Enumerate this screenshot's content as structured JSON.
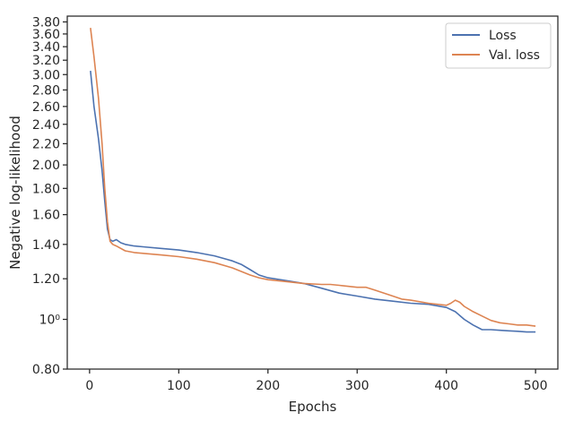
{
  "chart_data": {
    "type": "line",
    "title": "",
    "xlabel": "Epochs",
    "ylabel": "Negative log-likelihood",
    "xlim": [
      -25,
      525
    ],
    "ylim": [
      0.8,
      3.9
    ],
    "y_scale": "log",
    "grid": false,
    "legend_position": "top-right",
    "x_ticks": [
      0,
      100,
      200,
      300,
      400,
      500
    ],
    "x_tick_labels": [
      "0",
      "100",
      "200",
      "300",
      "400",
      "500"
    ],
    "y_ticks": [
      0.8,
      1.0,
      1.2,
      1.4,
      1.6,
      1.8,
      2.0,
      2.2,
      2.4,
      2.6,
      2.8,
      3.0,
      3.2,
      3.4,
      3.6,
      3.8
    ],
    "y_tick_labels": [
      "0.80",
      "10⁰",
      "1.20",
      "1.40",
      "1.60",
      "1.80",
      "2.00",
      "2.20",
      "2.40",
      "2.60",
      "2.80",
      "3.00",
      "3.20",
      "3.40",
      "3.60",
      "3.80"
    ],
    "series": [
      {
        "name": "Loss",
        "color": "#4c72b0",
        "x": [
          1,
          5,
          10,
          14,
          17,
          20,
          23,
          26,
          30,
          35,
          40,
          50,
          60,
          80,
          100,
          120,
          140,
          160,
          170,
          180,
          190,
          200,
          220,
          240,
          260,
          280,
          300,
          320,
          340,
          360,
          380,
          400,
          410,
          420,
          430,
          440,
          450,
          460,
          470,
          480,
          490,
          500
        ],
        "y": [
          3.05,
          2.6,
          2.25,
          1.95,
          1.7,
          1.5,
          1.43,
          1.42,
          1.43,
          1.41,
          1.4,
          1.39,
          1.385,
          1.375,
          1.365,
          1.35,
          1.33,
          1.3,
          1.28,
          1.25,
          1.22,
          1.205,
          1.19,
          1.175,
          1.15,
          1.125,
          1.11,
          1.095,
          1.085,
          1.075,
          1.07,
          1.055,
          1.035,
          1.0,
          0.975,
          0.955,
          0.955,
          0.952,
          0.95,
          0.948,
          0.945,
          0.945
        ]
      },
      {
        "name": "Val. loss",
        "color": "#dd8452",
        "x": [
          1,
          5,
          10,
          14,
          17,
          20,
          23,
          26,
          30,
          40,
          50,
          60,
          80,
          100,
          120,
          140,
          160,
          180,
          190,
          200,
          220,
          240,
          260,
          270,
          280,
          300,
          310,
          320,
          340,
          350,
          360,
          380,
          400,
          405,
          410,
          415,
          420,
          430,
          440,
          450,
          460,
          470,
          480,
          490,
          500
        ],
        "y": [
          3.7,
          3.25,
          2.7,
          2.2,
          1.8,
          1.55,
          1.42,
          1.4,
          1.39,
          1.36,
          1.35,
          1.345,
          1.335,
          1.325,
          1.31,
          1.29,
          1.26,
          1.22,
          1.205,
          1.195,
          1.185,
          1.175,
          1.17,
          1.17,
          1.165,
          1.155,
          1.155,
          1.14,
          1.11,
          1.095,
          1.09,
          1.075,
          1.065,
          1.075,
          1.09,
          1.08,
          1.06,
          1.035,
          1.015,
          0.995,
          0.985,
          0.98,
          0.975,
          0.975,
          0.97
        ]
      }
    ]
  }
}
